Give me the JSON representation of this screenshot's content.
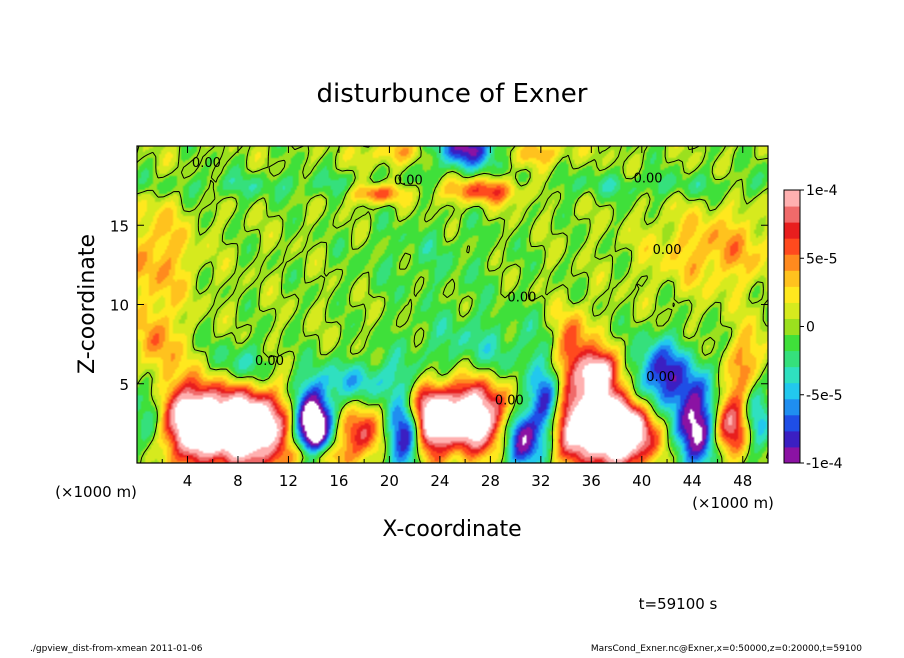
{
  "chart_data": {
    "type": "heatmap",
    "title": "disturbunce of Exner",
    "xlabel": "X-coordinate",
    "ylabel": "Z-coordinate",
    "x_unit_label": "(×1000 m)",
    "y_unit_label": "(×1000 m)",
    "xlim": [
      0,
      50
    ],
    "ylim": [
      0,
      20
    ],
    "x_ticks": [
      4,
      8,
      12,
      16,
      20,
      24,
      28,
      32,
      36,
      40,
      44,
      48
    ],
    "y_ticks": [
      5,
      10,
      15
    ],
    "colorbar": {
      "range": [
        -0.0001,
        0.0001
      ],
      "tick_values": [
        0.0001,
        5e-05,
        0,
        -5e-05,
        -0.0001
      ],
      "tick_labels": [
        "1e-4",
        "5e-5",
        "0",
        "-5e-5",
        "-1e-4"
      ],
      "colors": [
        "#8b12a3",
        "#3b1fc2",
        "#1f4ee6",
        "#1f8ef0",
        "#22c8ee",
        "#2fe0c0",
        "#35e07c",
        "#3fe03a",
        "#9be01e",
        "#d6ea1e",
        "#ffe81e",
        "#ffc21e",
        "#ff8a1e",
        "#ff4a1e",
        "#e81e1e",
        "#f06a6a",
        "#ffb0b0"
      ]
    },
    "contour_labels": [
      {
        "text": "0.00",
        "x": 5.5,
        "z": 19.0
      },
      {
        "text": "0.00",
        "x": 21.5,
        "z": 17.9
      },
      {
        "text": "0.00",
        "x": 40.5,
        "z": 18.0
      },
      {
        "text": "0.00",
        "x": 42.0,
        "z": 13.5
      },
      {
        "text": "0.00",
        "x": 30.5,
        "z": 10.5
      },
      {
        "text": "0.00",
        "x": 10.5,
        "z": 6.5
      },
      {
        "text": "0.00",
        "x": 41.5,
        "z": 5.5
      },
      {
        "text": "0.00",
        "x": 29.5,
        "z": 4.0
      }
    ],
    "anomalies": [
      {
        "x": 5.0,
        "z": 2.5,
        "rx": 3.2,
        "rz": 2.6,
        "amp": 0.00016
      },
      {
        "x": 9.5,
        "z": 2.2,
        "rx": 2.6,
        "rz": 2.4,
        "amp": 0.00014
      },
      {
        "x": 14.0,
        "z": 2.3,
        "rx": 1.6,
        "rz": 2.4,
        "amp": -0.00015
      },
      {
        "x": 17.5,
        "z": 1.8,
        "rx": 1.8,
        "rz": 1.6,
        "amp": 8e-05
      },
      {
        "x": 21.5,
        "z": 1.8,
        "rx": 1.6,
        "rz": 2.2,
        "amp": -0.00012
      },
      {
        "x": 23.0,
        "z": 2.5,
        "rx": 1.6,
        "rz": 2.3,
        "amp": 0.00013
      },
      {
        "x": 26.5,
        "z": 3.0,
        "rx": 3.0,
        "rz": 2.3,
        "amp": 0.00015
      },
      {
        "x": 30.5,
        "z": 1.6,
        "rx": 1.4,
        "rz": 2.2,
        "amp": -0.00012
      },
      {
        "x": 32.5,
        "z": 3.5,
        "rx": 1.2,
        "rz": 2.5,
        "amp": -0.0001
      },
      {
        "x": 35.8,
        "z": 2.5,
        "rx": 3.2,
        "rz": 2.6,
        "amp": 0.00015
      },
      {
        "x": 39.0,
        "z": 1.8,
        "rx": 2.0,
        "rz": 2.0,
        "amp": 0.00012
      },
      {
        "x": 41.5,
        "z": 5.5,
        "rx": 2.0,
        "rz": 2.2,
        "amp": -9e-05
      },
      {
        "x": 44.5,
        "z": 2.5,
        "rx": 1.6,
        "rz": 3.0,
        "amp": -0.00012
      },
      {
        "x": 47.0,
        "z": 2.5,
        "rx": 1.5,
        "rz": 2.3,
        "amp": 0.0001
      },
      {
        "x": 36.5,
        "z": 5.8,
        "rx": 1.5,
        "rz": 1.3,
        "amp": 0.00011
      },
      {
        "x": 34.5,
        "z": 7.5,
        "rx": 1.4,
        "rz": 2.0,
        "amp": 7e-05
      },
      {
        "x": 1.0,
        "z": 3.5,
        "rx": 1.3,
        "rz": 3.5,
        "amp": -6e-05
      },
      {
        "x": 1.5,
        "z": 7.0,
        "rx": 1.5,
        "rz": 2.5,
        "amp": 6e-05
      },
      {
        "x": 49.0,
        "z": 3.0,
        "rx": 1.0,
        "rz": 3.0,
        "amp": -6e-05
      },
      {
        "x": 48.5,
        "z": 6.5,
        "rx": 1.6,
        "rz": 2.0,
        "amp": 5e-05
      },
      {
        "x": 14.0,
        "z": 0.4,
        "rx": 2.5,
        "rz": 0.8,
        "amp": 6e-05
      },
      {
        "x": 26.0,
        "z": 19.8,
        "rx": 3.0,
        "rz": 1.2,
        "amp": -9e-05
      },
      {
        "x": 21.0,
        "z": 19.6,
        "rx": 3.0,
        "rz": 0.8,
        "amp": 4e-05
      },
      {
        "x": 31.5,
        "z": 19.6,
        "rx": 3.0,
        "rz": 0.8,
        "amp": 4e-05
      },
      {
        "x": 19.0,
        "z": 17.0,
        "rx": 2.0,
        "rz": 0.6,
        "amp": 7e-05
      },
      {
        "x": 27.5,
        "z": 17.2,
        "rx": 3.5,
        "rz": 0.8,
        "amp": 7e-05
      },
      {
        "x": 46.0,
        "z": 13.5,
        "rx": 5.0,
        "rz": 2.5,
        "amp": 4e-05
      },
      {
        "x": 1.5,
        "z": 13.0,
        "rx": 3.0,
        "rz": 3.5,
        "amp": 4e-05
      },
      {
        "x": 18.0,
        "z": 5.2,
        "rx": 4.0,
        "rz": 1.2,
        "amp": -4e-05
      },
      {
        "x": 8.0,
        "z": 6.0,
        "rx": 2.5,
        "rz": 1.5,
        "amp": -4e-05
      },
      {
        "x": 27.0,
        "z": 7.0,
        "rx": 6.0,
        "rz": 2.5,
        "amp": -3e-05
      },
      {
        "x": 23.0,
        "z": 13.0,
        "rx": 6.0,
        "rz": 2.5,
        "amp": -1.5e-05
      },
      {
        "x": 10.0,
        "z": 17.5,
        "rx": 12.0,
        "rz": 0.8,
        "amp": -2e-05
      },
      {
        "x": 40.0,
        "z": 17.5,
        "rx": 12.0,
        "rz": 0.8,
        "amp": -2e-05
      }
    ]
  },
  "footer": {
    "time_label": "t=59100 s",
    "script_label": "./gpview_dist-from-xmean  2011-01-06",
    "source_label": "MarsCond_Exner.nc@Exner,x=0:50000,z=0:20000,t=59100"
  }
}
